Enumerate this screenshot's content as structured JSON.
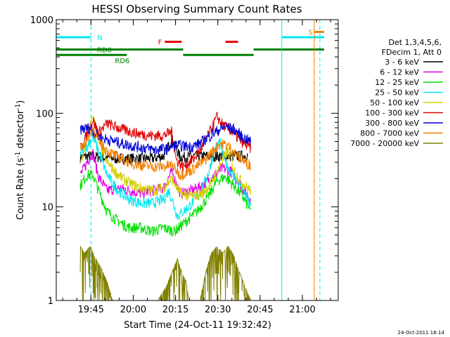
{
  "chart_data": {
    "type": "line",
    "title": "HESSI Observing Summary Count Rates",
    "xlabel": "Start Time (24-Oct-11 19:32:42)",
    "ylabel_main": "Count Rate (s",
    "ylabel_sup1": "-1",
    "ylabel_mid": " detector",
    "ylabel_sup2": "-1",
    "ylabel_end": ")",
    "timestamp": "24-Oct-2011 18:14",
    "xlim_minutes": [
      0,
      100
    ],
    "ylim": [
      1,
      1000
    ],
    "yscale": "log",
    "x_ticks": [
      {
        "m": 12.3,
        "label": "19:45"
      },
      {
        "m": 27.3,
        "label": "20:00"
      },
      {
        "m": 42.3,
        "label": "20:15"
      },
      {
        "m": 57.3,
        "label": "20:30"
      },
      {
        "m": 72.3,
        "label": "20:45"
      },
      {
        "m": 87.3,
        "label": "21:00"
      }
    ],
    "y_ticks": [
      {
        "v": 1,
        "label": "1"
      },
      {
        "v": 10,
        "label": "10"
      },
      {
        "v": 100,
        "label": "100"
      },
      {
        "v": 1000,
        "label": "1000"
      }
    ],
    "legend_header": [
      "Det 1,3,4,5,6,",
      "FDecim 1, Att 0"
    ],
    "legend_placement": "right",
    "series": [
      {
        "name": "3 - 6 keV",
        "color": "#000000",
        "points": [
          [
            8.5,
            34
          ],
          [
            12,
            35
          ],
          [
            16,
            34
          ],
          [
            22,
            33
          ],
          [
            28,
            33
          ],
          [
            34,
            33
          ],
          [
            38,
            35
          ],
          [
            41,
            52
          ],
          [
            44,
            34
          ],
          [
            50,
            35
          ],
          [
            56,
            35
          ],
          [
            62,
            35
          ],
          [
            66,
            35
          ],
          [
            68,
            36
          ]
        ]
      },
      {
        "name": "6 - 12 keV",
        "color": "#e000e0",
        "points": [
          [
            8.5,
            22
          ],
          [
            11,
            30
          ],
          [
            13,
            38
          ],
          [
            15,
            21
          ],
          [
            18,
            15
          ],
          [
            22,
            16
          ],
          [
            26,
            15
          ],
          [
            30,
            14
          ],
          [
            34,
            15
          ],
          [
            38,
            16
          ],
          [
            41,
            24
          ],
          [
            44,
            14
          ],
          [
            48,
            15
          ],
          [
            52,
            17
          ],
          [
            56,
            22
          ],
          [
            59,
            26
          ],
          [
            62,
            24
          ],
          [
            66,
            16
          ],
          [
            69,
            12
          ]
        ]
      },
      {
        "name": "12 - 25 keV",
        "color": "#00e000",
        "points": [
          [
            8.5,
            17
          ],
          [
            11,
            22
          ],
          [
            13,
            22
          ],
          [
            15,
            15
          ],
          [
            18,
            9
          ],
          [
            22,
            7
          ],
          [
            26,
            6
          ],
          [
            30,
            6
          ],
          [
            34,
            5.5
          ],
          [
            38,
            6
          ],
          [
            42,
            5.5
          ],
          [
            46,
            7
          ],
          [
            50,
            9
          ],
          [
            54,
            13
          ],
          [
            57,
            19
          ],
          [
            60,
            21
          ],
          [
            63,
            17
          ],
          [
            66,
            13
          ],
          [
            69,
            9
          ]
        ]
      },
      {
        "name": "25 - 50 keV",
        "color": "#00e8f0",
        "points": [
          [
            8.5,
            38
          ],
          [
            11,
            45
          ],
          [
            13,
            56
          ],
          [
            15,
            40
          ],
          [
            18,
            22
          ],
          [
            22,
            15
          ],
          [
            26,
            12
          ],
          [
            30,
            11
          ],
          [
            34,
            11
          ],
          [
            38,
            12
          ],
          [
            40,
            15
          ],
          [
            43,
            8
          ],
          [
            47,
            10
          ],
          [
            51,
            14
          ],
          [
            54,
            23
          ],
          [
            56,
            40
          ],
          [
            58,
            50
          ],
          [
            60,
            30
          ],
          [
            63,
            21
          ],
          [
            66,
            16
          ],
          [
            69,
            10
          ]
        ]
      },
      {
        "name": "50 - 100 keV",
        "color": "#d0d000",
        "points": [
          [
            8.5,
            28
          ],
          [
            11,
            55
          ],
          [
            13,
            95
          ],
          [
            15,
            50
          ],
          [
            18,
            30
          ],
          [
            22,
            22
          ],
          [
            26,
            18
          ],
          [
            30,
            16
          ],
          [
            34,
            15
          ],
          [
            38,
            16
          ],
          [
            41,
            20
          ],
          [
            44,
            14
          ],
          [
            48,
            13
          ],
          [
            52,
            14
          ],
          [
            55,
            18
          ],
          [
            58,
            28
          ],
          [
            61,
            40
          ],
          [
            63,
            25
          ],
          [
            66,
            18
          ],
          [
            69,
            15
          ]
        ]
      },
      {
        "name": "100 - 300 keV",
        "color": "#e00000",
        "points": [
          [
            8.5,
            42
          ],
          [
            11,
            60
          ],
          [
            13,
            85
          ],
          [
            15,
            62
          ],
          [
            18,
            78
          ],
          [
            22,
            70
          ],
          [
            26,
            64
          ],
          [
            30,
            60
          ],
          [
            34,
            58
          ],
          [
            38,
            58
          ],
          [
            41,
            64
          ],
          [
            42.5,
            32
          ],
          [
            45,
            27
          ],
          [
            49,
            33
          ],
          [
            52,
            45
          ],
          [
            55,
            68
          ],
          [
            57,
            92
          ],
          [
            59,
            76
          ],
          [
            62,
            65
          ],
          [
            65,
            52
          ],
          [
            69,
            42
          ]
        ]
      },
      {
        "name": "300 - 800 keV",
        "color": "#0000d8",
        "points": [
          [
            8.5,
            68
          ],
          [
            12,
            70
          ],
          [
            15,
            56
          ],
          [
            19,
            52
          ],
          [
            23,
            48
          ],
          [
            27,
            45
          ],
          [
            31,
            43
          ],
          [
            35,
            41
          ],
          [
            39,
            42
          ],
          [
            42,
            46
          ],
          [
            45,
            45
          ],
          [
            48,
            44
          ],
          [
            51,
            48
          ],
          [
            54,
            56
          ],
          [
            57,
            65
          ],
          [
            60,
            72
          ],
          [
            63,
            68
          ],
          [
            66,
            56
          ],
          [
            69,
            50
          ]
        ]
      },
      {
        "name": "800 - 7000 keV",
        "color": "#f08000",
        "points": [
          [
            8.5,
            42
          ],
          [
            11,
            52
          ],
          [
            13,
            70
          ],
          [
            15,
            50
          ],
          [
            18,
            40
          ],
          [
            22,
            34
          ],
          [
            26,
            30
          ],
          [
            30,
            28
          ],
          [
            34,
            27
          ],
          [
            38,
            27
          ],
          [
            41,
            28
          ],
          [
            44,
            22
          ],
          [
            48,
            25
          ],
          [
            52,
            30
          ],
          [
            55,
            38
          ],
          [
            58,
            48
          ],
          [
            61,
            45
          ],
          [
            64,
            36
          ],
          [
            67,
            30
          ],
          [
            69,
            28
          ]
        ]
      },
      {
        "name": "7000 - 20000 keV",
        "color": "#808000",
        "points": [
          [
            8.5,
            3.8
          ],
          [
            10,
            3.2
          ],
          [
            12,
            3.8
          ],
          [
            14,
            2.8
          ],
          [
            16,
            2.2
          ],
          [
            18,
            1.6
          ],
          [
            20,
            1.0
          ],
          [
            36,
            1.0
          ],
          [
            39,
            1.4
          ],
          [
            41,
            2.0
          ],
          [
            43,
            2.8
          ],
          [
            44,
            2.2
          ],
          [
            46,
            1.6
          ],
          [
            47,
            1.0
          ],
          [
            51,
            1.0
          ],
          [
            53,
            2.0
          ],
          [
            55,
            3.2
          ],
          [
            57,
            3.8
          ],
          [
            59,
            3.2
          ],
          [
            61,
            3.8
          ],
          [
            63,
            3.0
          ],
          [
            65,
            2.0
          ],
          [
            67,
            1.4
          ],
          [
            69,
            1.0
          ]
        ]
      }
    ],
    "flags": [
      {
        "label": "N",
        "color": "#00e8f0",
        "y": 650,
        "segments": [
          [
            0,
            12.3
          ],
          [
            80,
            95
          ]
        ]
      },
      {
        "label": "RD0",
        "color": "#008000",
        "y": 480,
        "segments": [
          [
            0,
            25
          ],
          [
            25,
            45
          ],
          [
            70,
            95
          ]
        ]
      },
      {
        "label": "RD6",
        "color": "#008000",
        "y": 420,
        "segments": [
          [
            0,
            25
          ],
          [
            45,
            70
          ]
        ]
      },
      {
        "label": "F",
        "color": "#e00000",
        "y": 580,
        "segments": [
          [
            38.5,
            44.5
          ],
          [
            60,
            64.5
          ]
        ]
      },
      {
        "label": "S",
        "color": "#f08000",
        "y": 740,
        "segments": [
          [
            91.5,
            95
          ]
        ]
      }
    ],
    "vlines": [
      {
        "m": 12.3,
        "color": "#00e8f0",
        "dashed": true
      },
      {
        "m": 80,
        "color": "#00e8f0",
        "dashed": false
      },
      {
        "m": 91.5,
        "color": "#f08000",
        "dashed": false
      },
      {
        "m": 93.5,
        "color": "#00e8f0",
        "dashed": true
      }
    ]
  }
}
